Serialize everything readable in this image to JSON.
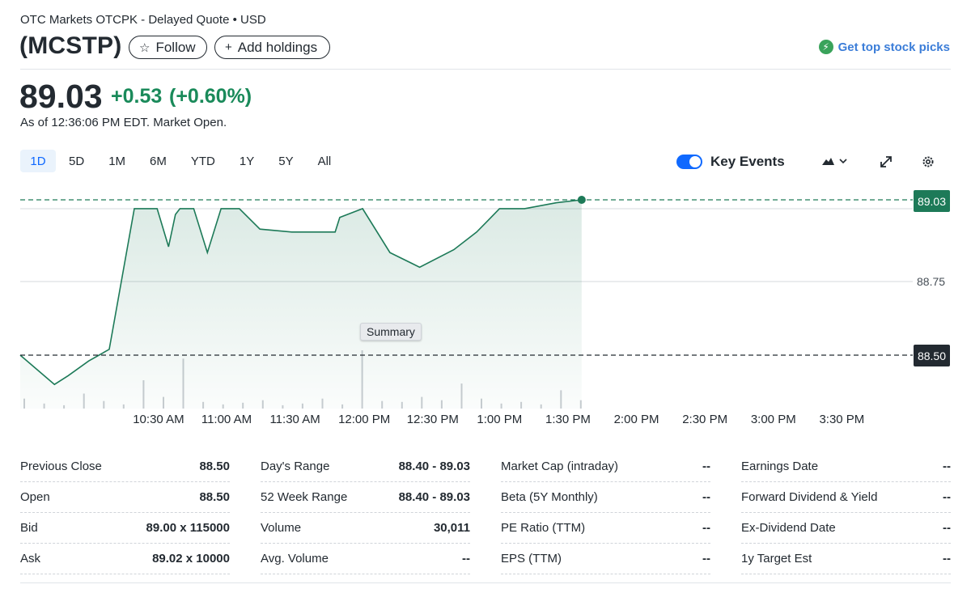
{
  "header": {
    "exchange": "OTC Markets OTCPK - Delayed Quote",
    "currency_sep": "•",
    "currency": "USD",
    "ticker": "(MCSTP)",
    "follow_label": "Follow",
    "add_holdings_label": "Add holdings",
    "picks_label": "Get top stock picks"
  },
  "quote": {
    "price": "89.03",
    "change": "+0.53",
    "change_pct": "(+0.60%)",
    "as_of": "As of 12:36:06 PM EDT. Market Open."
  },
  "ranges": [
    "1D",
    "5D",
    "1M",
    "6M",
    "YTD",
    "1Y",
    "5Y",
    "All"
  ],
  "active_range": "1D",
  "controls": {
    "key_events_label": "Key Events",
    "key_events_on": true,
    "icons": [
      "mountain-chart-icon",
      "chevron-down-icon",
      "expand-icon",
      "gear-icon"
    ]
  },
  "colors": {
    "up": "#1a8a5a",
    "link": "#3b7dd8",
    "accent": "#0f69ff",
    "prev_close": "#232a31"
  },
  "chart_data": {
    "type": "area",
    "title": "",
    "xlabel": "",
    "ylabel": "",
    "x_ticks": [
      "10:30 AM",
      "11:00 AM",
      "11:30 AM",
      "12:00 PM",
      "12:30 PM",
      "1:00 PM",
      "1:30 PM",
      "2:00 PM",
      "2:30 PM",
      "3:00 PM",
      "3:30 PM"
    ],
    "y_tick": "88.75",
    "last_price_label": "89.03",
    "prev_close_label": "88.50",
    "ylim": [
      88.45,
      89.05
    ],
    "overlay_label": "Summary",
    "series": [
      {
        "x": [
          "09:30",
          "09:45",
          "09:51",
          "10:00",
          "10:09",
          "10:20",
          "10:30",
          "10:35",
          "10:38",
          "10:40",
          "10:43",
          "10:46",
          "10:52",
          "10:58",
          "11:06",
          "11:15",
          "11:29",
          "11:48",
          "11:50",
          "12:00",
          "12:12",
          "12:25",
          "12:40",
          "12:50",
          "12:55",
          "13:00",
          "13:05",
          "13:11",
          "13:25",
          "13:36"
        ],
        "values": [
          88.5,
          88.4,
          88.43,
          88.48,
          88.52,
          89.0,
          89.0,
          88.87,
          88.98,
          89.0,
          89.0,
          89.0,
          88.85,
          89.0,
          89.0,
          88.93,
          88.92,
          88.92,
          88.97,
          89.0,
          88.85,
          88.8,
          88.86,
          88.92,
          88.96,
          89.0,
          89.0,
          89.0,
          89.02,
          89.03
        ]
      }
    ],
    "volume": [
      12,
      6,
      4,
      18,
      9,
      5,
      34,
      14,
      60,
      8,
      5,
      7,
      10,
      4,
      6,
      12,
      5,
      70,
      9,
      8,
      14,
      10,
      30,
      12,
      6,
      8,
      5,
      22,
      10
    ]
  },
  "stats": [
    [
      {
        "label": "Previous Close",
        "value": "88.50"
      },
      {
        "label": "Open",
        "value": "88.50"
      },
      {
        "label": "Bid",
        "value": "89.00 x 115000"
      },
      {
        "label": "Ask",
        "value": "89.02 x 10000"
      }
    ],
    [
      {
        "label": "Day's Range",
        "value": "88.40 - 89.03"
      },
      {
        "label": "52 Week Range",
        "value": "88.40 - 89.03"
      },
      {
        "label": "Volume",
        "value": "30,011"
      },
      {
        "label": "Avg. Volume",
        "value": "--"
      }
    ],
    [
      {
        "label": "Market Cap (intraday)",
        "value": "--"
      },
      {
        "label": "Beta (5Y Monthly)",
        "value": "--"
      },
      {
        "label": "PE Ratio (TTM)",
        "value": "--"
      },
      {
        "label": "EPS (TTM)",
        "value": "--"
      }
    ],
    [
      {
        "label": "Earnings Date",
        "value": "--"
      },
      {
        "label": "Forward Dividend & Yield",
        "value": "--"
      },
      {
        "label": "Ex-Dividend Date",
        "value": "--"
      },
      {
        "label": "1y Target Est",
        "value": "--"
      }
    ]
  ]
}
